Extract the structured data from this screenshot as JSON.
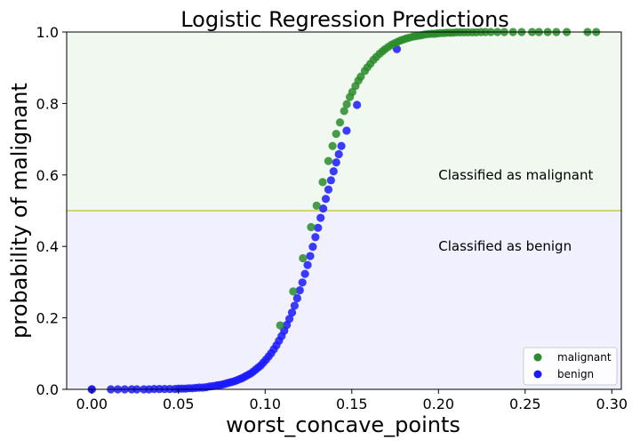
{
  "chart_data": {
    "type": "scatter",
    "title": "Logistic Regression Predictions",
    "xlabel": "worst_concave_points",
    "ylabel": "probability of malignant",
    "xlim": [
      -0.0145,
      0.3055
    ],
    "ylim": [
      0.0,
      1.0
    ],
    "xticks": [
      0.0,
      0.05,
      0.1,
      0.15,
      0.2,
      0.25,
      0.3
    ],
    "xtick_labels": [
      "0.00",
      "0.05",
      "0.10",
      "0.15",
      "0.20",
      "0.25",
      "0.30"
    ],
    "yticks": [
      0.0,
      0.2,
      0.4,
      0.6,
      0.8,
      1.0
    ],
    "ytick_labels": [
      "0.0",
      "0.2",
      "0.4",
      "0.6",
      "0.8",
      "1.0"
    ],
    "threshold": 0.5,
    "grid": false,
    "legend_position": "bottom-right",
    "regions": [
      {
        "label": "Classified as malignant",
        "y_from": 0.5,
        "y_to": 1.0,
        "color": "#f0f8f0",
        "label_x": 0.2,
        "label_y": 0.6
      },
      {
        "label": "Classified as benign",
        "y_from": 0.0,
        "y_to": 0.5,
        "color": "#f0f0ff",
        "label_x": 0.2,
        "label_y": 0.4
      }
    ],
    "threshold_color": "#c8c84a",
    "curve": {
      "intercept": -10.2,
      "slope": 75.5
    },
    "series": [
      {
        "name": "malignant",
        "color": "#2a8c2a",
        "x": [
          0.1087,
          0.1162,
          0.1218,
          0.1265,
          0.1297,
          0.1332,
          0.1365,
          0.1389,
          0.141,
          0.1432,
          0.1456,
          0.1471,
          0.1489,
          0.1503,
          0.1521,
          0.1538,
          0.1552,
          0.1575,
          0.159,
          0.1607,
          0.1625,
          0.1641,
          0.166,
          0.1677,
          0.1692,
          0.171,
          0.1728,
          0.1745,
          0.1762,
          0.178,
          0.1797,
          0.1815,
          0.1832,
          0.1851,
          0.1868,
          0.1886,
          0.1903,
          0.192,
          0.1938,
          0.1957,
          0.1975,
          0.1992,
          0.201,
          0.203,
          0.2048,
          0.2066,
          0.2085,
          0.2104,
          0.2125,
          0.2147,
          0.217,
          0.2195,
          0.2218,
          0.2245,
          0.2271,
          0.2302,
          0.234,
          0.238,
          0.243,
          0.248,
          0.254,
          0.258,
          0.263,
          0.268,
          0.274,
          0.286,
          0.291
        ],
        "y": [
          0.179,
          0.274,
          0.367,
          0.454,
          0.514,
          0.58,
          0.639,
          0.681,
          0.715,
          0.747,
          0.779,
          0.798,
          0.818,
          0.832,
          0.849,
          0.864,
          0.875,
          0.891,
          0.901,
          0.911,
          0.922,
          0.93,
          0.939,
          0.946,
          0.952,
          0.958,
          0.964,
          0.968,
          0.972,
          0.976,
          0.979,
          0.982,
          0.984,
          0.987,
          0.988,
          0.99,
          0.991,
          0.993,
          0.994,
          0.995,
          0.995,
          0.996,
          0.997,
          0.997,
          0.998,
          0.998,
          0.998,
          0.999,
          0.999,
          0.999,
          0.999,
          0.999,
          0.999,
          1.0,
          1.0,
          1.0,
          1.0,
          1.0,
          1.0,
          1.0,
          1.0,
          1.0,
          1.0,
          1.0,
          1.0,
          1.0,
          1.0
        ]
      },
      {
        "name": "benign",
        "color": "#1a1aff",
        "x": [
          0.0,
          0.0,
          0.011,
          0.015,
          0.019,
          0.023,
          0.026,
          0.03,
          0.033,
          0.036,
          0.039,
          0.042,
          0.045,
          0.048,
          0.05,
          0.052,
          0.054,
          0.056,
          0.058,
          0.06,
          0.062,
          0.064,
          0.066,
          0.068,
          0.07,
          0.072,
          0.0735,
          0.075,
          0.0765,
          0.078,
          0.0795,
          0.081,
          0.0825,
          0.084,
          0.0855,
          0.087,
          0.0885,
          0.09,
          0.0915,
          0.093,
          0.0945,
          0.096,
          0.0975,
          0.099,
          0.1005,
          0.102,
          0.1035,
          0.105,
          0.1065,
          0.108,
          0.1095,
          0.111,
          0.1125,
          0.114,
          0.1155,
          0.117,
          0.1185,
          0.12,
          0.1215,
          0.123,
          0.1245,
          0.126,
          0.1275,
          0.129,
          0.1305,
          0.132,
          0.1335,
          0.135,
          0.1365,
          0.138,
          0.1395,
          0.141,
          0.1425,
          0.144,
          0.147,
          0.153,
          0.176
        ],
        "y": [
          0.0,
          0.0,
          0.0,
          0.0,
          0.0,
          0.0,
          0.0,
          0.0,
          0.0,
          0.001,
          0.001,
          0.001,
          0.001,
          0.001,
          0.002,
          0.002,
          0.002,
          0.003,
          0.003,
          0.004,
          0.005,
          0.005,
          0.006,
          0.008,
          0.009,
          0.011,
          0.012,
          0.013,
          0.015,
          0.017,
          0.019,
          0.021,
          0.023,
          0.026,
          0.029,
          0.032,
          0.036,
          0.04,
          0.044,
          0.049,
          0.055,
          0.061,
          0.067,
          0.075,
          0.083,
          0.092,
          0.101,
          0.112,
          0.123,
          0.136,
          0.149,
          0.164,
          0.18,
          0.197,
          0.215,
          0.234,
          0.255,
          0.277,
          0.299,
          0.323,
          0.348,
          0.373,
          0.399,
          0.426,
          0.452,
          0.48,
          0.506,
          0.533,
          0.559,
          0.585,
          0.61,
          0.635,
          0.658,
          0.681,
          0.724,
          0.796,
          0.952
        ]
      }
    ]
  }
}
